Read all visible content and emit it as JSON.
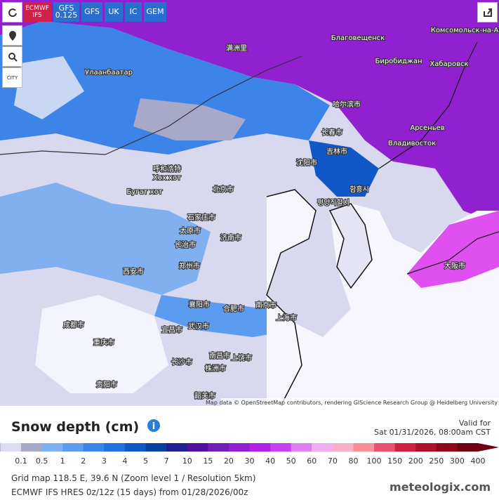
{
  "toolbar": {
    "models": [
      "ECMWF IFS",
      "GFS 0.125",
      "GFS",
      "UK",
      "IC",
      "GEM"
    ],
    "city": "CITY"
  },
  "map": {
    "places": [
      "Улаанбаатар",
      "Благовещенск",
      "Комсомольск-на-Амуре",
      "Биробиджан",
      "Хабаровск",
      "满洲里",
      "哈尔滨市",
      "Арсеньев",
      "长春市",
      "Владивосток",
      "吉林市",
      "沈阳市",
      "呼和浩特",
      "Хөх хот",
      "Бугат хот",
      "北京市",
      "평양직할시",
      "함흥시",
      "石家庄市",
      "太原市",
      "济南市",
      "长治市",
      "郑州市",
      "西安市",
      "大阪市",
      "南京市",
      "合肥市",
      "襄阳市",
      "上海市",
      "成都市",
      "武汉市",
      "宜昌市",
      "重庆市",
      "长沙市",
      "南昌市",
      "上饶市",
      "株洲市",
      "贵阳市",
      "韶关市"
    ],
    "attribution": "Map data © OpenStreetMap contributors, rendering GIScience Research Group @ Heidelberg University"
  },
  "footer": {
    "title": "Snow depth (cm)",
    "valid_label": "Valid for",
    "valid_time": "Sat 01/31/2026, 08:00am CST",
    "legend": {
      "labels": [
        0.1,
        0.5,
        1,
        2,
        3,
        4,
        5,
        7,
        10,
        15,
        20,
        30,
        40,
        50,
        60,
        70,
        80,
        100,
        150,
        200,
        250,
        300,
        400
      ],
      "colors": [
        "#dcdcf4",
        "#a8a8c8",
        "#80b0f0",
        "#5c9cf0",
        "#3c84e8",
        "#2070e0",
        "#1058c8",
        "#0840a0",
        "#202090",
        "#5010a0",
        "#7020b8",
        "#9020d0",
        "#b020e8",
        "#c840f0",
        "#e080f0",
        "#f0b0f0",
        "#f8b0c8",
        "#f89098",
        "#e85070",
        "#d02040",
        "#b01028",
        "#900818",
        "#700010"
      ]
    },
    "info": [
      "Grid map 118.5 E, 39.6 N (Zoom level 1 / Resolution 5km)",
      "ECMWF IFS HRES 0z/12z (15 days) from 01/28/2026/00z"
    ],
    "watermark": "meteologix.com"
  }
}
